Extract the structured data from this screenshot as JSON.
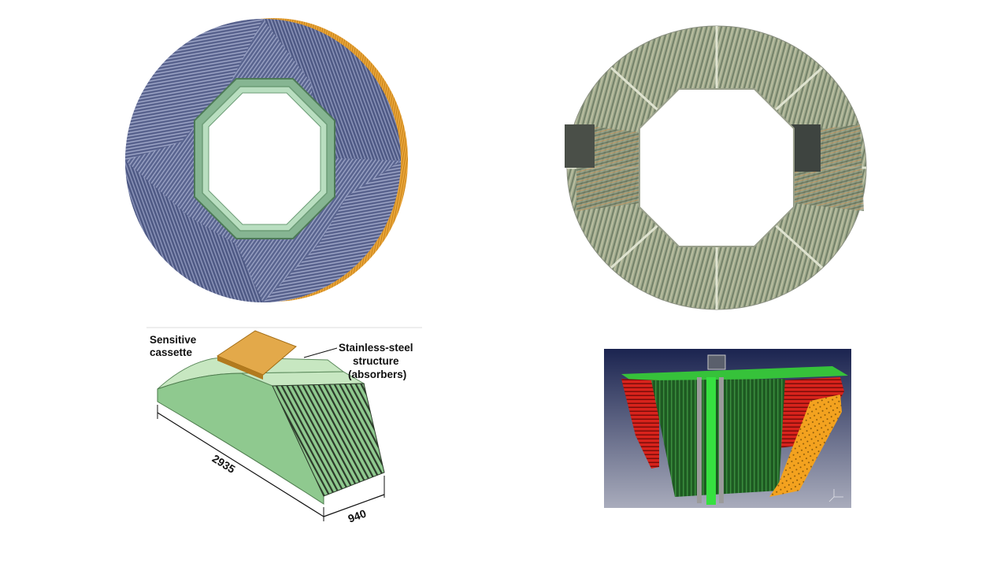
{
  "top_left_image": {
    "description_icon": "sampling-calorimeter-disc",
    "colors": {
      "absorber": "#55608a",
      "absorber_light": "#8f98bb",
      "rim": "#e8a43a",
      "frame": "#86b592",
      "frame_light": "#b9dec0"
    }
  },
  "top_right_image": {
    "description_icon": "modular-barrel-ring",
    "colors": {
      "module": "#9eaa8e",
      "module_dark": "#5f6b55",
      "accent": "#c8935b"
    }
  },
  "bottom_left_image": {
    "labels": {
      "sensitive_line1": "Sensitive",
      "sensitive_line2": "cassette",
      "steel_line1": "Stainless-steel",
      "steel_line2": "structure",
      "steel_line3": "(absorbers)"
    },
    "dimensions": {
      "length": "2935",
      "width": "940"
    },
    "colors": {
      "body": "#8fc98f",
      "body_light": "#c7e7c1",
      "cassette": "#e3a94a",
      "stripes": "#2c3a2a"
    }
  },
  "bottom_right_image": {
    "description_icon": "wedge-cross-section-render",
    "colors": {
      "background_top": "#1b2450",
      "background_bottom": "#a9acbc",
      "red": "#d8231c",
      "green": "#36c23a",
      "dark_green": "#1e5a22",
      "orange": "#f3a21f"
    }
  }
}
